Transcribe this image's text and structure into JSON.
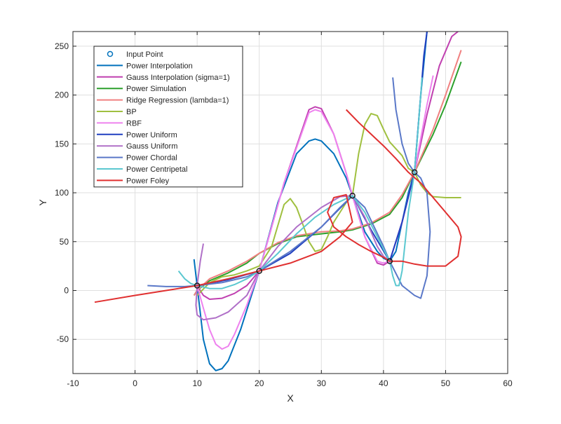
{
  "chart_data": {
    "type": "line",
    "title": "",
    "xlabel": "X",
    "ylabel": "Y",
    "xlim": [
      -10,
      60
    ],
    "ylim": [
      -85,
      265
    ],
    "x_ticks": [
      -10,
      0,
      10,
      20,
      30,
      40,
      50,
      60
    ],
    "y_ticks": [
      -50,
      0,
      50,
      100,
      150,
      200,
      250
    ],
    "grid": true,
    "legend_position": "top-left",
    "input_points": {
      "name": "Input Point",
      "color": "#0072BD",
      "x": [
        10,
        20,
        35,
        41,
        45
      ],
      "y": [
        5,
        20,
        97,
        30,
        121
      ]
    },
    "series": [
      {
        "name": "Power Interpolation",
        "color": "#0072BD",
        "x": [
          9.5,
          10,
          11,
          12,
          13,
          14,
          15,
          17,
          20,
          23,
          26,
          28,
          29,
          30,
          32,
          34,
          35,
          37,
          39,
          40,
          41,
          42,
          43,
          44,
          45,
          46,
          47
        ],
        "y": [
          32,
          5,
          -50,
          -75,
          -82,
          -80,
          -72,
          -40,
          20,
          90,
          140,
          153,
          155,
          153,
          140,
          115,
          97,
          60,
          40,
          33,
          30,
          40,
          70,
          100,
          121,
          200,
          265
        ]
      },
      {
        "name": "Gauss Interpolation (sigma=1)",
        "color": "#C040B0",
        "x": [
          10,
          11,
          12,
          14,
          16,
          18,
          20,
          24,
          28,
          29,
          30,
          32,
          34,
          35,
          37,
          39,
          40,
          41,
          43,
          45,
          47,
          49,
          51,
          52
        ],
        "y": [
          5,
          -5,
          -9,
          -8,
          -3,
          5,
          20,
          110,
          185,
          188,
          186,
          160,
          120,
          97,
          55,
          28,
          26,
          30,
          70,
          121,
          180,
          230,
          260,
          265
        ]
      },
      {
        "name": "Power Simulation",
        "color": "#2CA02C",
        "x": [
          9.5,
          10,
          12,
          15,
          18,
          20,
          23,
          26,
          30,
          33,
          35,
          38,
          41,
          43,
          45,
          48,
          50,
          52.5
        ],
        "y": [
          -5,
          0,
          10,
          18,
          28,
          38,
          48,
          55,
          58,
          60,
          62,
          68,
          78,
          95,
          121,
          160,
          190,
          234
        ]
      },
      {
        "name": "Ridge Regression (lambda=1)",
        "color": "#F08080",
        "x": [
          9.5,
          10,
          12,
          15,
          18,
          20,
          23,
          26,
          30,
          33,
          35,
          38,
          41,
          43,
          45,
          48,
          50,
          52.5
        ],
        "y": [
          -5,
          0,
          12,
          20,
          30,
          38,
          49,
          56,
          60,
          61,
          63,
          69,
          80,
          98,
          121,
          165,
          200,
          246
        ]
      },
      {
        "name": "BP",
        "color": "#A0C040",
        "x": [
          10,
          12,
          14,
          16,
          18,
          20,
          22,
          24,
          25,
          26,
          27,
          28,
          29,
          30,
          31,
          32,
          33,
          34,
          35,
          36,
          37,
          38,
          39,
          40,
          41,
          42,
          43,
          44,
          45,
          46,
          47,
          48,
          50,
          52.5
        ],
        "y": [
          -5,
          8,
          14,
          16,
          20,
          25,
          45,
          88,
          94,
          85,
          68,
          50,
          40,
          42,
          55,
          70,
          80,
          90,
          97,
          140,
          170,
          181,
          179,
          165,
          152,
          145,
          138,
          125,
          121,
          108,
          100,
          96,
          95,
          95
        ]
      },
      {
        "name": "RBF",
        "color": "#EE82EE",
        "x": [
          10,
          11,
          12,
          13,
          14,
          15,
          16,
          18,
          20,
          24,
          28,
          29,
          30,
          32,
          34,
          35,
          37,
          39,
          40,
          41,
          43,
          45,
          47,
          48
        ],
        "y": [
          5,
          -18,
          -40,
          -55,
          -60,
          -57,
          -45,
          -15,
          20,
          110,
          182,
          185,
          183,
          160,
          120,
          97,
          55,
          30,
          28,
          30,
          70,
          121,
          190,
          220
        ]
      },
      {
        "name": "Power Uniform",
        "color": "#2040C0",
        "x": [
          10,
          15,
          20,
          25,
          30,
          35,
          38,
          41,
          43,
          45,
          46,
          46.5,
          47
        ],
        "y": [
          5,
          11,
          20,
          38,
          65,
          97,
          62,
          30,
          70,
          121,
          200,
          240,
          265
        ]
      },
      {
        "name": "Gauss Uniform",
        "color": "#B070C8",
        "x": [
          11,
          10.5,
          10,
          9.8,
          10,
          11,
          13,
          15,
          18,
          20,
          23,
          26,
          30,
          33,
          35,
          37,
          39,
          40,
          41
        ],
        "y": [
          48,
          30,
          5,
          -15,
          -25,
          -30,
          -28,
          -22,
          -5,
          20,
          45,
          65,
          85,
          96,
          97,
          75,
          45,
          35,
          30
        ]
      },
      {
        "name": "Power Chordal",
        "color": "#5A78C8",
        "x": [
          2,
          5,
          8,
          10,
          14,
          18,
          20,
          25,
          30,
          33,
          35,
          37,
          40,
          41,
          43,
          45,
          46,
          47,
          47.5,
          47,
          46,
          45,
          44,
          43,
          42,
          41.5
        ],
        "y": [
          5,
          4,
          4,
          5,
          8,
          14,
          20,
          40,
          65,
          85,
          97,
          85,
          45,
          30,
          5,
          -5,
          -8,
          15,
          60,
          100,
          115,
          121,
          130,
          150,
          185,
          218
        ]
      },
      {
        "name": "Power Centripetal",
        "color": "#5BC8D0",
        "x": [
          7,
          8,
          9,
          10,
          12,
          14,
          16,
          18,
          20,
          23,
          26,
          29,
          32,
          35,
          37,
          39,
          41,
          41.5,
          42,
          42.5,
          43,
          44,
          45,
          45.5,
          46,
          46.2
        ],
        "y": [
          20,
          12,
          7,
          5,
          2,
          2,
          6,
          12,
          20,
          38,
          58,
          75,
          88,
          97,
          80,
          55,
          30,
          15,
          5,
          5,
          20,
          80,
          121,
          160,
          200,
          218
        ]
      },
      {
        "name": "Power Foley",
        "color": "#E03030",
        "x": [
          -6.5,
          0,
          5,
          10,
          15,
          20,
          25,
          30,
          33,
          35,
          34,
          32,
          31,
          32,
          34,
          36,
          38,
          40,
          41,
          43,
          45,
          47,
          50,
          52,
          52.5,
          52,
          50,
          48,
          46,
          44,
          42,
          40,
          38,
          36,
          34
        ],
        "y": [
          -12,
          -5,
          0,
          5,
          12,
          20,
          28,
          40,
          55,
          70,
          98,
          95,
          80,
          65,
          55,
          47,
          40,
          34,
          30,
          30,
          27,
          25,
          25,
          35,
          55,
          65,
          80,
          95,
          110,
          121,
          135,
          148,
          160,
          172,
          185
        ]
      }
    ]
  }
}
